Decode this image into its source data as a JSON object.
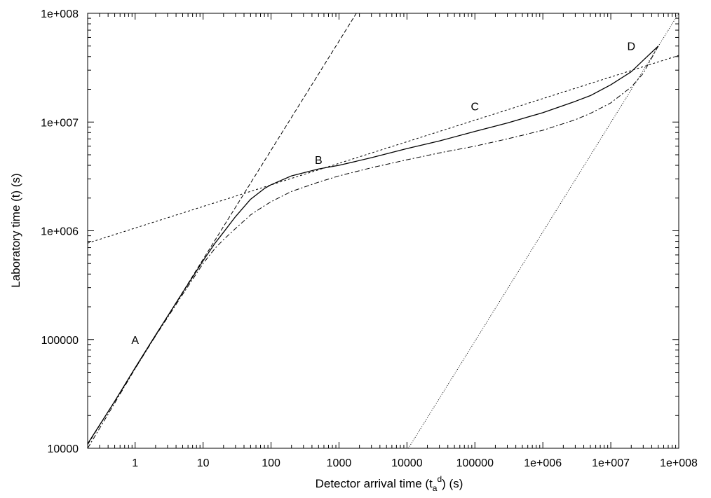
{
  "chart_data": {
    "type": "line",
    "xscale": "log",
    "yscale": "log",
    "xlim": [
      0.2,
      100000000
    ],
    "ylim": [
      10000,
      100000000
    ],
    "grid": false,
    "xlabel_prefix": "Detector arrival time (t",
    "xlabel_sub": "a",
    "xlabel_sup": "d",
    "xlabel_suffix": ") (s)",
    "ylabel": "Laboratory time (t) (s)",
    "x_ticks": [
      {
        "value": 1,
        "label": "1"
      },
      {
        "value": 10,
        "label": "10"
      },
      {
        "value": 100,
        "label": "100"
      },
      {
        "value": 1000,
        "label": "1000"
      },
      {
        "value": 10000,
        "label": "10000"
      },
      {
        "value": 100000,
        "label": "100000"
      },
      {
        "value": 1000000,
        "label": "1e+006"
      },
      {
        "value": 10000000,
        "label": "1e+007"
      },
      {
        "value": 100000000,
        "label": "1e+008"
      }
    ],
    "y_ticks": [
      {
        "value": 10000,
        "label": "10000"
      },
      {
        "value": 100000,
        "label": "100000"
      },
      {
        "value": 1000000,
        "label": "1e+006"
      },
      {
        "value": 10000000,
        "label": "1e+007"
      },
      {
        "value": 100000000,
        "label": "1e+008"
      }
    ],
    "series": [
      {
        "style": "solid",
        "x": [
          0.2,
          0.5,
          1,
          2,
          5,
          10,
          15,
          20,
          30,
          50,
          80,
          100,
          200,
          500,
          1000,
          3000,
          10000,
          30000,
          100000,
          300000,
          1000000,
          3000000,
          5000000,
          10000000,
          20000000,
          30000000,
          50000000
        ],
        "y": [
          11000,
          27000,
          55000,
          110000,
          270000,
          530000,
          770000,
          970000,
          1350000,
          1950000,
          2450000,
          2650000,
          3200000,
          3700000,
          4000000,
          4700000,
          5700000,
          6700000,
          8200000,
          9800000,
          12200000,
          15500000,
          17500000,
          22000000,
          29000000,
          37000000,
          50000000
        ]
      },
      {
        "style": "dash-dot",
        "x": [
          0.2,
          0.5,
          1,
          2,
          5,
          10,
          15,
          20,
          30,
          50,
          80,
          100,
          200,
          500,
          1000,
          3000,
          10000,
          30000,
          100000,
          300000,
          1000000,
          3000000,
          5000000,
          10000000,
          20000000,
          30000000,
          50000000
        ],
        "y": [
          10000,
          26000,
          54000,
          108000,
          260000,
          500000,
          690000,
          830000,
          1050000,
          1400000,
          1700000,
          1850000,
          2300000,
          2800000,
          3200000,
          3800000,
          4500000,
          5200000,
          6000000,
          7000000,
          8400000,
          10500000,
          12000000,
          15000000,
          21000000,
          28000000,
          50000000
        ]
      },
      {
        "style": "dashed",
        "x": [
          0.2,
          1800
        ],
        "y": [
          10800,
          100000000
        ]
      },
      {
        "style": "short-dash",
        "x": [
          0.2,
          100000000
        ],
        "y": [
          770000,
          41000000
        ]
      },
      {
        "style": "dotted",
        "x": [
          10500,
          100000000
        ],
        "y": [
          10000,
          100000000
        ]
      }
    ],
    "annotations": [
      {
        "text": "A",
        "x": 1,
        "y": 100000
      },
      {
        "text": "B",
        "x": 500,
        "y": 4500000
      },
      {
        "text": "C",
        "x": 100000,
        "y": 14000000
      },
      {
        "text": "D",
        "x": 20000000,
        "y": 50000000
      }
    ]
  }
}
